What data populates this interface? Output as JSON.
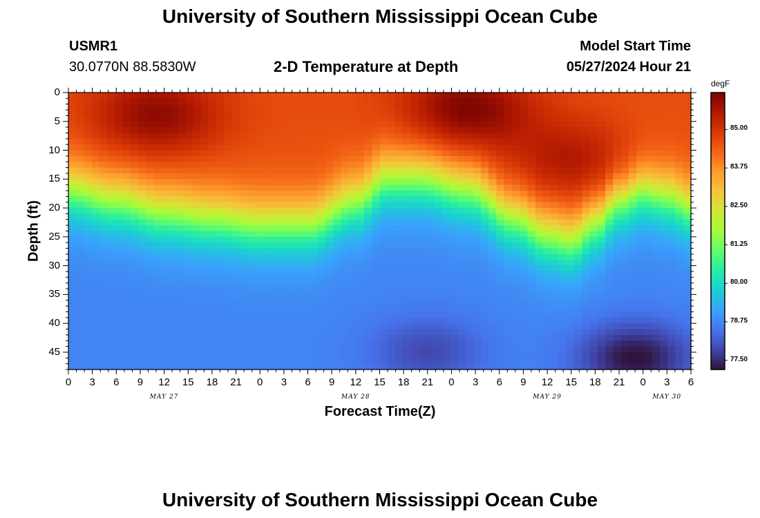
{
  "header": {
    "title": "University of Southern Mississippi Ocean Cube",
    "station": "USMR1",
    "coords": "30.0770N  88.5830W",
    "subtitle": "2-D Temperature at Depth",
    "start_label": "Model Start Time",
    "start_value": "05/27/2024 Hour 21"
  },
  "footer": {
    "title": "University of Southern Mississippi Ocean Cube"
  },
  "colors": {
    "colormap": [
      "#30123b",
      "#4145ab",
      "#4675ed",
      "#39a2fc",
      "#1bcfd4",
      "#24eca6",
      "#61fc6c",
      "#a4fc3b",
      "#d1e834",
      "#f3c63a",
      "#fe9b2d",
      "#f36315",
      "#d93806",
      "#b11901",
      "#7a0402"
    ]
  },
  "chart_data": {
    "type": "heatmap",
    "title": "2-D Temperature at Depth",
    "xlabel": "Forecast Time(Z)",
    "ylabel": "Depth (ft)",
    "x_tick_labels": [
      "0",
      "3",
      "6",
      "9",
      "12",
      "15",
      "18",
      "21",
      "0",
      "3",
      "6",
      "9",
      "12",
      "15",
      "18",
      "21",
      "0",
      "3",
      "6",
      "9",
      "12",
      "15",
      "18",
      "21",
      "0",
      "3",
      "6"
    ],
    "x_range_hours": [
      0,
      78
    ],
    "date_labels": [
      {
        "label": "MAY 27",
        "hour": 12
      },
      {
        "label": "MAY 28",
        "hour": 36
      },
      {
        "label": "MAY 29",
        "hour": 60
      },
      {
        "label": "MAY 30",
        "hour": 75
      }
    ],
    "y_ticks": [
      0,
      5,
      10,
      15,
      20,
      25,
      30,
      35,
      40,
      45
    ],
    "y_range_ft": [
      0,
      48
    ],
    "colorbar": {
      "unit": "degF",
      "ticks": [
        "85.00",
        "83.75",
        "82.50",
        "81.25",
        "80.00",
        "78.75",
        "77.50"
      ],
      "range": [
        77.2,
        86.2
      ]
    },
    "thermocline_depth_ft": [
      {
        "hour": 0,
        "depth": 17
      },
      {
        "hour": 6,
        "depth": 19
      },
      {
        "hour": 12,
        "depth": 21
      },
      {
        "hour": 18,
        "depth": 22
      },
      {
        "hour": 24,
        "depth": 23
      },
      {
        "hour": 30,
        "depth": 23
      },
      {
        "hour": 36,
        "depth": 19
      },
      {
        "hour": 40,
        "depth": 15
      },
      {
        "hour": 44,
        "depth": 15
      },
      {
        "hour": 50,
        "depth": 17
      },
      {
        "hour": 56,
        "depth": 22
      },
      {
        "hour": 60,
        "depth": 25
      },
      {
        "hour": 63,
        "depth": 26
      },
      {
        "hour": 66,
        "depth": 23
      },
      {
        "hour": 69,
        "depth": 19
      },
      {
        "hour": 72,
        "depth": 17
      },
      {
        "hour": 75,
        "depth": 18
      },
      {
        "hour": 78,
        "depth": 20
      }
    ],
    "warm_cores": [
      {
        "hour": 11,
        "depth": 4,
        "temp": 86.0
      },
      {
        "hour": 50,
        "depth": 3,
        "temp": 86.2
      },
      {
        "hour": 63,
        "depth": 12,
        "temp": 85.6
      }
    ],
    "cold_cores": [
      {
        "hour": 45,
        "depth": 45,
        "temp": 77.9
      },
      {
        "hour": 71,
        "depth": 46,
        "temp": 77.2
      }
    ],
    "surface_temp_range": [
      84.3,
      86.2
    ],
    "bottom_temp_range": [
      77.2,
      78.9
    ]
  }
}
